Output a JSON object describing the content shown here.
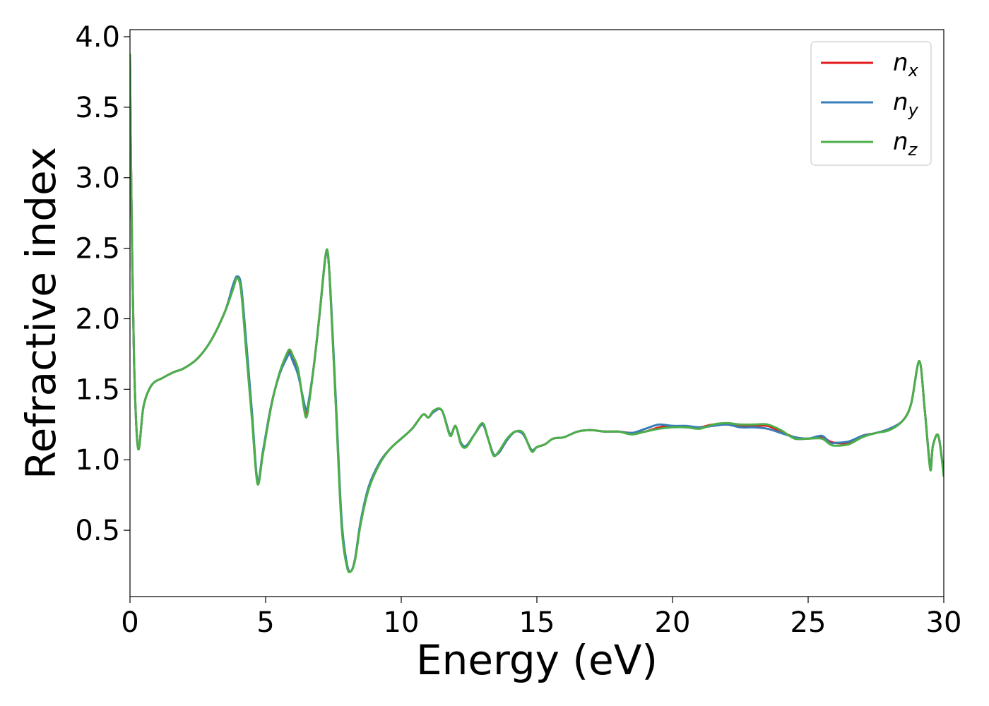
{
  "chart_data": {
    "type": "line",
    "xlabel": "Energy (eV)",
    "ylabel": "Refractive index",
    "xlim": [
      0,
      30
    ],
    "ylim": [
      0.03,
      4.05
    ],
    "x_ticks": [
      0,
      5,
      10,
      15,
      20,
      25,
      30
    ],
    "x_tick_labels": [
      "0",
      "5",
      "10",
      "15",
      "20",
      "25",
      "30"
    ],
    "y_ticks": [
      0.5,
      1.0,
      1.5,
      2.0,
      2.5,
      3.0,
      3.5,
      4.0
    ],
    "y_tick_labels": [
      "0.5",
      "1.0",
      "1.5",
      "2.0",
      "2.5",
      "3.0",
      "3.5",
      "4.0"
    ],
    "grid": false,
    "legend_position": "top-right",
    "series": [
      {
        "name": "n_x",
        "legend_base": "n",
        "legend_sub": "x",
        "color": "#e41a1c",
        "x": [
          0,
          0.05,
          0.15,
          0.3,
          0.5,
          0.8,
          1.2,
          1.6,
          2.0,
          2.5,
          3.0,
          3.5,
          3.8,
          3.95,
          4.1,
          4.3,
          4.5,
          4.7,
          4.9,
          5.2,
          5.5,
          5.8,
          5.9,
          6.0,
          6.2,
          6.4,
          6.5,
          6.6,
          6.8,
          7.0,
          7.2,
          7.3,
          7.4,
          7.6,
          7.8,
          8.0,
          8.15,
          8.3,
          8.5,
          8.8,
          9.2,
          9.6,
          10.0,
          10.4,
          10.8,
          11.0,
          11.2,
          11.5,
          11.8,
          12.0,
          12.2,
          12.4,
          12.7,
          13.0,
          13.2,
          13.4,
          13.6,
          13.9,
          14.2,
          14.5,
          14.8,
          15.0,
          15.3,
          15.6,
          16.0,
          16.5,
          17.0,
          17.5,
          18.0,
          18.5,
          19.0,
          19.5,
          20.0,
          20.5,
          21.0,
          21.5,
          22.0,
          22.5,
          23.0,
          23.5,
          24.0,
          24.5,
          25.0,
          25.5,
          25.8,
          26.0,
          26.5,
          27.0,
          27.5,
          28.0,
          28.5,
          28.8,
          29.1,
          29.3,
          29.5,
          29.6,
          29.8,
          30.0
        ],
        "values": [
          3.85,
          2.9,
          1.7,
          1.08,
          1.38,
          1.53,
          1.58,
          1.62,
          1.65,
          1.72,
          1.85,
          2.05,
          2.22,
          2.3,
          2.2,
          1.75,
          1.3,
          0.84,
          1.05,
          1.38,
          1.6,
          1.74,
          1.77,
          1.72,
          1.62,
          1.4,
          1.33,
          1.42,
          1.7,
          2.05,
          2.43,
          2.45,
          2.15,
          1.35,
          0.55,
          0.25,
          0.21,
          0.3,
          0.55,
          0.8,
          0.98,
          1.08,
          1.15,
          1.22,
          1.32,
          1.3,
          1.34,
          1.35,
          1.18,
          1.24,
          1.12,
          1.1,
          1.18,
          1.25,
          1.15,
          1.04,
          1.05,
          1.14,
          1.2,
          1.18,
          1.07,
          1.09,
          1.11,
          1.15,
          1.16,
          1.2,
          1.21,
          1.2,
          1.2,
          1.19,
          1.2,
          1.23,
          1.24,
          1.23,
          1.23,
          1.25,
          1.25,
          1.24,
          1.24,
          1.24,
          1.2,
          1.16,
          1.15,
          1.16,
          1.13,
          1.12,
          1.12,
          1.17,
          1.19,
          1.22,
          1.28,
          1.4,
          1.7,
          1.35,
          0.95,
          1.1,
          1.17,
          0.9
        ]
      },
      {
        "name": "n_y",
        "legend_base": "n",
        "legend_sub": "y",
        "color": "#377eb8",
        "x": [
          0,
          0.05,
          0.15,
          0.3,
          0.5,
          0.8,
          1.2,
          1.6,
          2.0,
          2.5,
          3.0,
          3.5,
          3.8,
          3.95,
          4.1,
          4.3,
          4.5,
          4.7,
          4.9,
          5.2,
          5.5,
          5.8,
          5.9,
          6.0,
          6.2,
          6.4,
          6.5,
          6.6,
          6.8,
          7.0,
          7.2,
          7.3,
          7.4,
          7.6,
          7.8,
          8.0,
          8.15,
          8.3,
          8.5,
          8.8,
          9.2,
          9.6,
          10.0,
          10.4,
          10.8,
          11.0,
          11.2,
          11.5,
          11.8,
          12.0,
          12.2,
          12.4,
          12.7,
          13.0,
          13.2,
          13.4,
          13.6,
          13.9,
          14.2,
          14.5,
          14.8,
          15.0,
          15.3,
          15.6,
          16.0,
          16.5,
          17.0,
          17.5,
          18.0,
          18.5,
          19.0,
          19.5,
          20.0,
          20.5,
          21.0,
          21.5,
          22.0,
          22.5,
          23.0,
          23.5,
          24.0,
          24.5,
          25.0,
          25.5,
          25.8,
          26.0,
          26.5,
          27.0,
          27.5,
          28.0,
          28.5,
          28.8,
          29.1,
          29.3,
          29.5,
          29.6,
          29.8,
          30.0
        ],
        "values": [
          3.85,
          2.9,
          1.7,
          1.08,
          1.38,
          1.53,
          1.58,
          1.62,
          1.65,
          1.72,
          1.85,
          2.05,
          2.24,
          2.3,
          2.23,
          1.8,
          1.33,
          0.85,
          1.06,
          1.38,
          1.6,
          1.73,
          1.75,
          1.7,
          1.6,
          1.42,
          1.35,
          1.43,
          1.7,
          2.05,
          2.43,
          2.45,
          2.17,
          1.38,
          0.58,
          0.26,
          0.21,
          0.3,
          0.56,
          0.81,
          0.98,
          1.08,
          1.15,
          1.22,
          1.32,
          1.3,
          1.34,
          1.35,
          1.18,
          1.24,
          1.12,
          1.1,
          1.18,
          1.25,
          1.15,
          1.04,
          1.05,
          1.14,
          1.2,
          1.18,
          1.07,
          1.09,
          1.11,
          1.15,
          1.16,
          1.2,
          1.21,
          1.2,
          1.2,
          1.19,
          1.22,
          1.25,
          1.24,
          1.24,
          1.23,
          1.24,
          1.25,
          1.23,
          1.23,
          1.22,
          1.19,
          1.16,
          1.15,
          1.17,
          1.12,
          1.12,
          1.13,
          1.17,
          1.19,
          1.22,
          1.28,
          1.4,
          1.7,
          1.35,
          0.95,
          1.1,
          1.17,
          0.9
        ]
      },
      {
        "name": "n_z",
        "legend_base": "n",
        "legend_sub": "z",
        "color": "#4daf4a",
        "x": [
          0,
          0.05,
          0.15,
          0.3,
          0.5,
          0.8,
          1.2,
          1.6,
          2.0,
          2.5,
          3.0,
          3.5,
          3.8,
          3.95,
          4.1,
          4.3,
          4.5,
          4.7,
          4.9,
          5.2,
          5.5,
          5.8,
          5.9,
          6.0,
          6.2,
          6.4,
          6.5,
          6.6,
          6.8,
          7.0,
          7.2,
          7.3,
          7.4,
          7.6,
          7.8,
          8.0,
          8.15,
          8.3,
          8.5,
          8.8,
          9.2,
          9.6,
          10.0,
          10.4,
          10.8,
          11.0,
          11.2,
          11.5,
          11.8,
          12.0,
          12.2,
          12.4,
          12.7,
          13.0,
          13.2,
          13.4,
          13.6,
          13.9,
          14.2,
          14.5,
          14.8,
          15.0,
          15.3,
          15.6,
          16.0,
          16.5,
          17.0,
          17.5,
          18.0,
          18.5,
          19.0,
          19.5,
          20.0,
          20.5,
          21.0,
          21.5,
          22.0,
          22.5,
          23.0,
          23.5,
          24.0,
          24.5,
          25.0,
          25.5,
          25.8,
          26.0,
          26.5,
          27.0,
          27.5,
          28.0,
          28.5,
          28.8,
          29.1,
          29.3,
          29.5,
          29.6,
          29.8,
          30.0
        ],
        "values": [
          3.88,
          2.9,
          1.7,
          1.08,
          1.38,
          1.53,
          1.58,
          1.62,
          1.65,
          1.72,
          1.85,
          2.05,
          2.21,
          2.29,
          2.19,
          1.73,
          1.28,
          0.83,
          1.04,
          1.37,
          1.61,
          1.76,
          1.78,
          1.74,
          1.64,
          1.38,
          1.3,
          1.4,
          1.7,
          2.06,
          2.44,
          2.46,
          2.14,
          1.33,
          0.53,
          0.24,
          0.21,
          0.29,
          0.54,
          0.79,
          0.97,
          1.08,
          1.15,
          1.22,
          1.32,
          1.3,
          1.35,
          1.35,
          1.17,
          1.24,
          1.11,
          1.09,
          1.18,
          1.26,
          1.15,
          1.03,
          1.06,
          1.15,
          1.2,
          1.19,
          1.06,
          1.09,
          1.11,
          1.15,
          1.16,
          1.2,
          1.21,
          1.2,
          1.2,
          1.18,
          1.2,
          1.22,
          1.23,
          1.23,
          1.22,
          1.25,
          1.26,
          1.25,
          1.25,
          1.25,
          1.21,
          1.15,
          1.15,
          1.15,
          1.11,
          1.1,
          1.11,
          1.16,
          1.19,
          1.21,
          1.28,
          1.4,
          1.7,
          1.35,
          0.93,
          1.1,
          1.17,
          0.88
        ]
      }
    ]
  }
}
